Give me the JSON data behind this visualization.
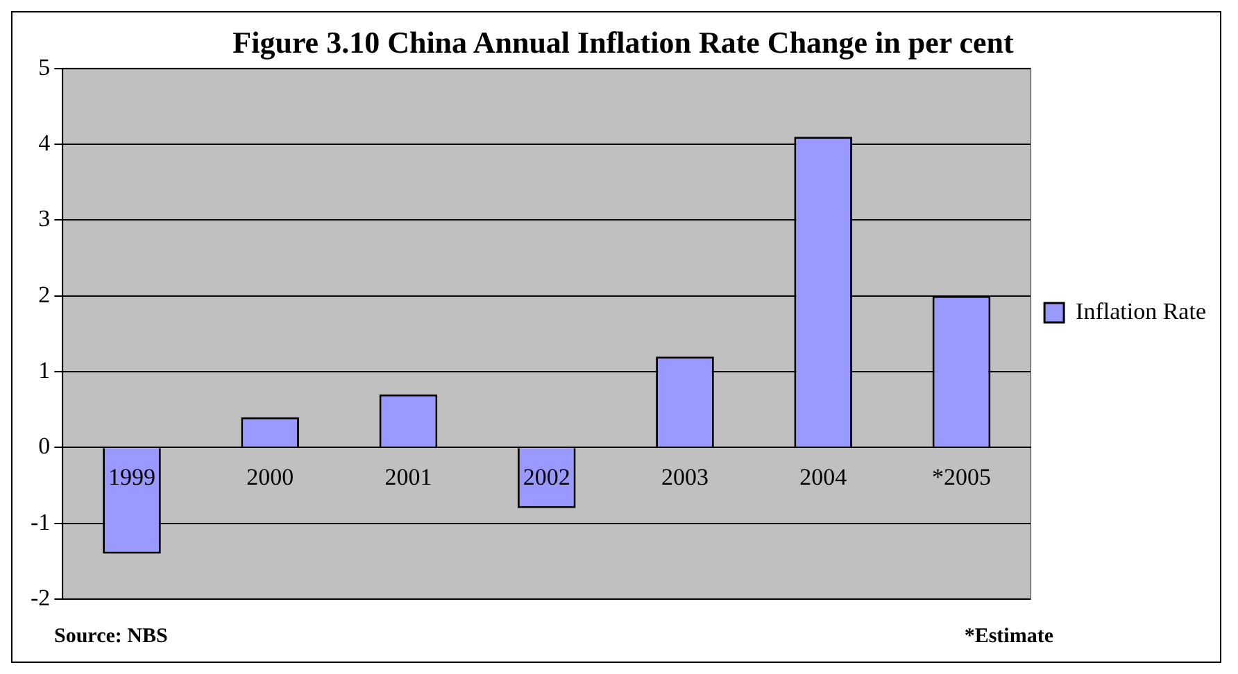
{
  "chart_data": {
    "type": "bar",
    "title": "Figure 3.10 China Annual Inflation Rate Change in per cent",
    "categories": [
      "1999",
      "2000",
      "2001",
      "2002",
      "2003",
      "2004",
      "*2005"
    ],
    "series": [
      {
        "name": "Inflation Rate",
        "color": "#9999ff",
        "values": [
          -1.4,
          0.4,
          0.7,
          -0.8,
          1.2,
          4.1,
          2.0
        ]
      }
    ],
    "ylim": [
      -2,
      5
    ],
    "yticks": [
      -2,
      -1,
      0,
      1,
      2,
      3,
      4,
      5
    ],
    "grid": "y",
    "legend": "right",
    "annotations": [
      "Source: NBS",
      "*Estimate"
    ]
  }
}
